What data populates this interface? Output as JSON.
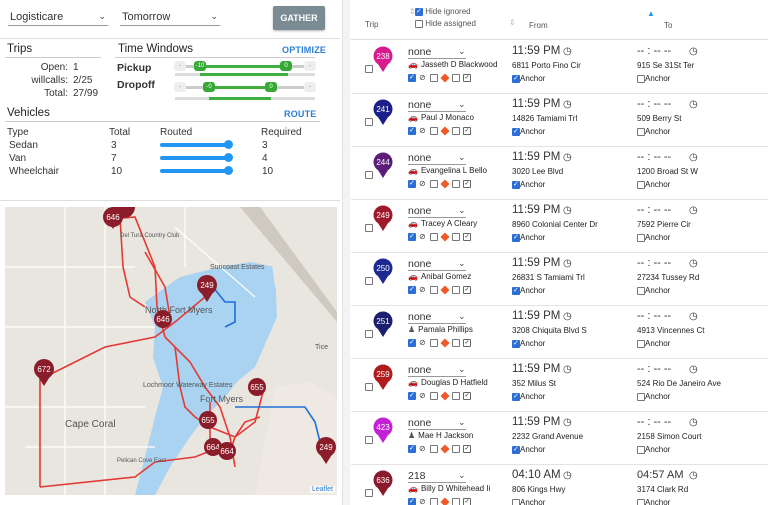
{
  "filters": {
    "provider": "Logisticare",
    "day": "Tomorrow",
    "gather_label": "GATHER"
  },
  "trips": {
    "title": "Trips",
    "open_label": "Open:",
    "open": "1",
    "willcalls_label": "willcalls:",
    "willcalls": "2/25",
    "total_label": "Total:",
    "total": "27/99"
  },
  "time_windows": {
    "title": "Time Windows",
    "optimize_label": "OPTIMIZE",
    "pickup_label": "Pickup",
    "dropoff_label": "Dropoff",
    "pickup_knobs": [
      "-10",
      "0"
    ],
    "dropoff_knobs": [
      "-0",
      "0"
    ]
  },
  "vehicles": {
    "title": "Vehicles",
    "route_label": "ROUTE",
    "headers": [
      "Type",
      "Total",
      "Routed",
      "Required"
    ],
    "rows": [
      {
        "type": "Sedan",
        "total": "3",
        "required": "3",
        "routed": 1.0
      },
      {
        "type": "Van",
        "total": "7",
        "required": "4",
        "routed": 1.0
      },
      {
        "type": "Wheelchair",
        "total": "10",
        "required": "10",
        "routed": 1.0
      }
    ]
  },
  "map": {
    "leaflet_label": "Leaflet",
    "place_labels": [
      "Cape Coral",
      "Lochmoor Waterway Estates",
      "Suncoast Estates",
      "North Fort Myers",
      "Tice",
      "Del Tura Country Club",
      "Fort Myers",
      "Pelican Cove East"
    ],
    "markers": [
      "646",
      "249",
      "646",
      "672",
      "655",
      "655",
      "664",
      "664",
      "249"
    ]
  },
  "table": {
    "headers": {
      "trip": "Trip",
      "from": "From",
      "to": "To",
      "hide_ignored": "Hide ignored",
      "hide_assigned": "Hide assigned"
    },
    "anchor_label": "Anchor",
    "rows": [
      {
        "trip": "238",
        "color": "#d81b8c",
        "mode": "none",
        "driver": "Jasseth D Blackwood",
        "driver_icon": "car-icon",
        "from_time": "11:59 PM",
        "from_addr": "6811 Porto Fino Cir",
        "from_anchor": true,
        "to_time": "-- : -- --",
        "to_addr": "915 Se 31St Ter",
        "to_anchor": false
      },
      {
        "trip": "241",
        "color": "#1a1f8a",
        "mode": "none",
        "driver": "Paul J Monaco",
        "driver_icon": "car-icon",
        "from_time": "11:59 PM",
        "from_addr": "14826 Tamiami Trl",
        "from_anchor": true,
        "to_time": "-- : -- --",
        "to_addr": "509 Berry St",
        "to_anchor": false
      },
      {
        "trip": "244",
        "color": "#5b1f7a",
        "mode": "none",
        "driver": "Evangelina L Bello",
        "driver_icon": "car-icon",
        "from_time": "11:59 PM",
        "from_addr": "3020 Lee Blvd",
        "from_anchor": true,
        "to_time": "-- : -- --",
        "to_addr": "1200 Broad St W",
        "to_anchor": false
      },
      {
        "trip": "249",
        "color": "#a0182b",
        "mode": "none",
        "driver": "Tracey A Cleary",
        "driver_icon": "car-icon",
        "from_time": "11:59 PM",
        "from_addr": "8960 Colonial Center Dr",
        "from_anchor": true,
        "to_time": "-- : -- --",
        "to_addr": "7592 Pierre Cir",
        "to_anchor": false
      },
      {
        "trip": "250",
        "color": "#1c2990",
        "mode": "none",
        "driver": "Anibal Gomez",
        "driver_icon": "car-icon",
        "from_time": "11:59 PM",
        "from_addr": "26831 S Tamiami Trl",
        "from_anchor": true,
        "to_time": "-- : -- --",
        "to_addr": "27234 Tussey Rd",
        "to_anchor": false
      },
      {
        "trip": "251",
        "color": "#1a1f6e",
        "mode": "none",
        "driver": "Pamala Phillips",
        "driver_icon": "person-icon",
        "from_time": "11:59 PM",
        "from_addr": "3208 Chiquita Blvd S",
        "from_anchor": true,
        "to_time": "-- : -- --",
        "to_addr": "4913 Vincennes Ct",
        "to_anchor": false
      },
      {
        "trip": "259",
        "color": "#b01c1c",
        "mode": "none",
        "driver": "Douglas D Hatfield",
        "driver_icon": "car-icon",
        "from_time": "11:59 PM",
        "from_addr": "352 Milus St",
        "from_anchor": true,
        "to_time": "-- : -- --",
        "to_addr": "524 Rio De Janeiro Ave",
        "to_anchor": false
      },
      {
        "trip": "423",
        "color": "#c321d6",
        "mode": "none",
        "driver": "Mae H Jackson",
        "driver_icon": "person-icon",
        "from_time": "11:59 PM",
        "from_addr": "2232 Grand Avenue",
        "from_anchor": true,
        "to_time": "-- : -- --",
        "to_addr": "2158 Simon Court",
        "to_anchor": false
      },
      {
        "trip": "636",
        "color": "#8a1a2a",
        "mode": "218",
        "driver": "Billy D Whitehead Ii",
        "driver_icon": "car-icon",
        "from_time": "04:10 AM",
        "from_addr": "806 Kings Hwy",
        "from_anchor": false,
        "to_time": "04:57 AM",
        "to_addr": "3174 Clark Rd",
        "to_anchor": false
      }
    ]
  }
}
